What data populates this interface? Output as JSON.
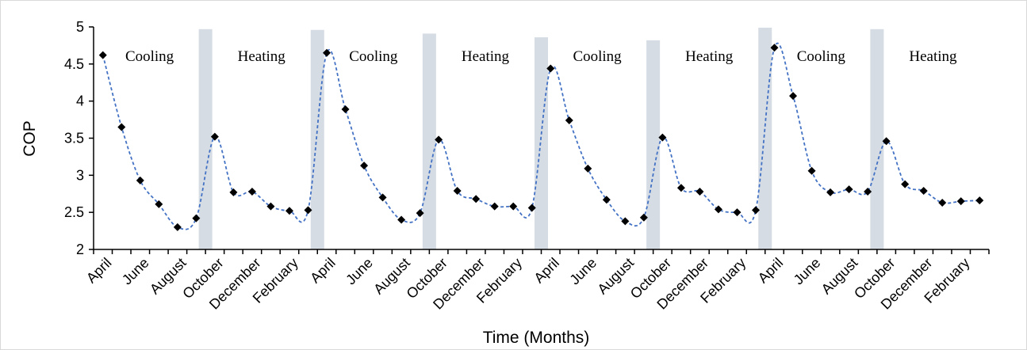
{
  "chart_data": {
    "type": "line",
    "title": "",
    "xlabel": "Time (Months)",
    "ylabel": "COP",
    "ylim": [
      2,
      5
    ],
    "yticks": [
      "2",
      "2.5",
      "3",
      "3.5",
      "4",
      "4.5",
      "5"
    ],
    "grid": false,
    "legend": "none",
    "x_tick_labels": [
      "April",
      "June",
      "August",
      "October",
      "December",
      "February",
      "April",
      "June",
      "August",
      "October",
      "December",
      "February",
      "April",
      "June",
      "August",
      "October",
      "December",
      "February",
      "April",
      "June",
      "August",
      "October",
      "December",
      "February"
    ],
    "series": [
      {
        "line_style": "dashed",
        "color": "#4472c4",
        "marker": "diamond",
        "marker_color": "#000000",
        "values": [
          4.62,
          3.65,
          2.93,
          2.61,
          2.3,
          2.42,
          3.52,
          2.77,
          2.78,
          2.58,
          2.52,
          2.53,
          4.65,
          3.89,
          3.13,
          2.7,
          2.4,
          2.49,
          3.48,
          2.79,
          2.68,
          2.58,
          2.58,
          2.56,
          4.44,
          3.74,
          3.09,
          2.67,
          2.38,
          2.43,
          3.51,
          2.83,
          2.78,
          2.54,
          2.5,
          2.53,
          4.72,
          4.07,
          3.06,
          2.77,
          2.81,
          2.78,
          3.46,
          2.88,
          2.79,
          2.63,
          2.65,
          2.66
        ]
      }
    ],
    "separator_color": "#d5dce4",
    "separators": [
      5.5,
      11.5,
      17.5,
      23.5,
      29.5,
      35.5,
      41.5
    ],
    "separator_tops": [
      4.97,
      4.96,
      4.91,
      4.86,
      4.82,
      4.99,
      4.97
    ],
    "season_labels": [
      "Cooling",
      "Heating",
      "Cooling",
      "Heating",
      "Cooling",
      "Heating",
      "Cooling",
      "Heating"
    ]
  }
}
